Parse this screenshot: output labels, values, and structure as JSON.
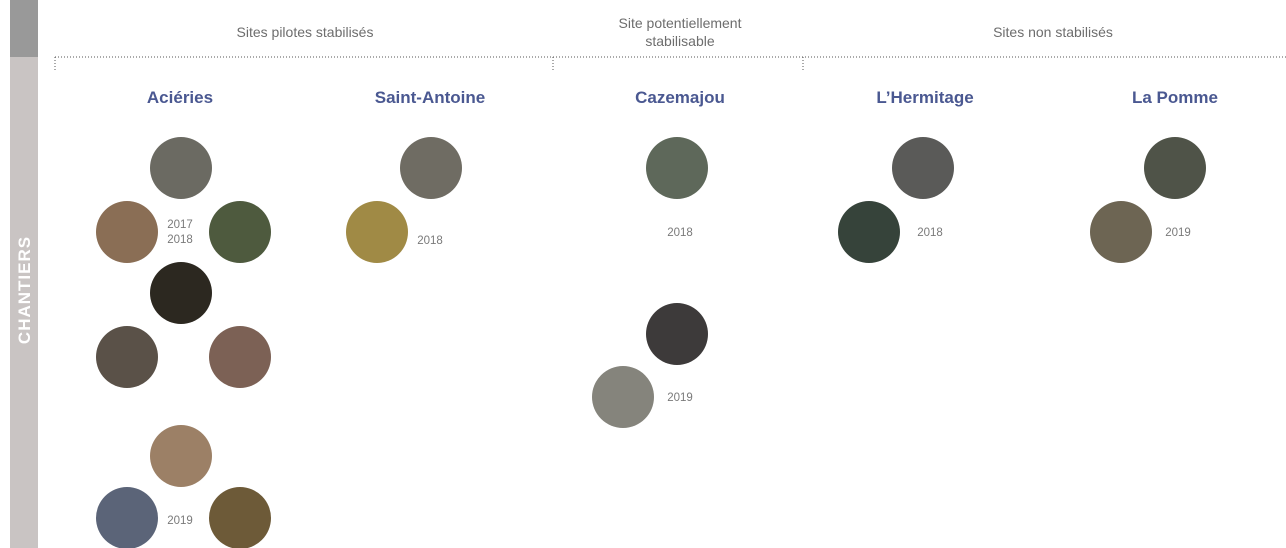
{
  "side_label": "CHANTIERS",
  "headers": [
    {
      "lines": [
        "Sites pilotes stabilisés"
      ]
    },
    {
      "lines": [
        "Site potentiellement",
        "stabilisable"
      ]
    },
    {
      "lines": [
        "Sites non stabilisés"
      ]
    }
  ],
  "sites": [
    {
      "name": "Aciéries",
      "groups": [
        {
          "years": [
            "2017",
            "2018"
          ]
        },
        {
          "years": [
            "2019"
          ]
        }
      ]
    },
    {
      "name": "Saint-Antoine",
      "groups": [
        {
          "years": [
            "2018"
          ]
        }
      ]
    },
    {
      "name": "Cazemajou",
      "groups": [
        {
          "years": [
            "2018"
          ]
        },
        {
          "years": [
            "2019"
          ]
        }
      ]
    },
    {
      "name": "L’Hermitage",
      "groups": [
        {
          "years": [
            "2018"
          ]
        }
      ]
    },
    {
      "name": "La Pomme",
      "groups": [
        {
          "years": [
            "2019"
          ]
        }
      ]
    }
  ]
}
